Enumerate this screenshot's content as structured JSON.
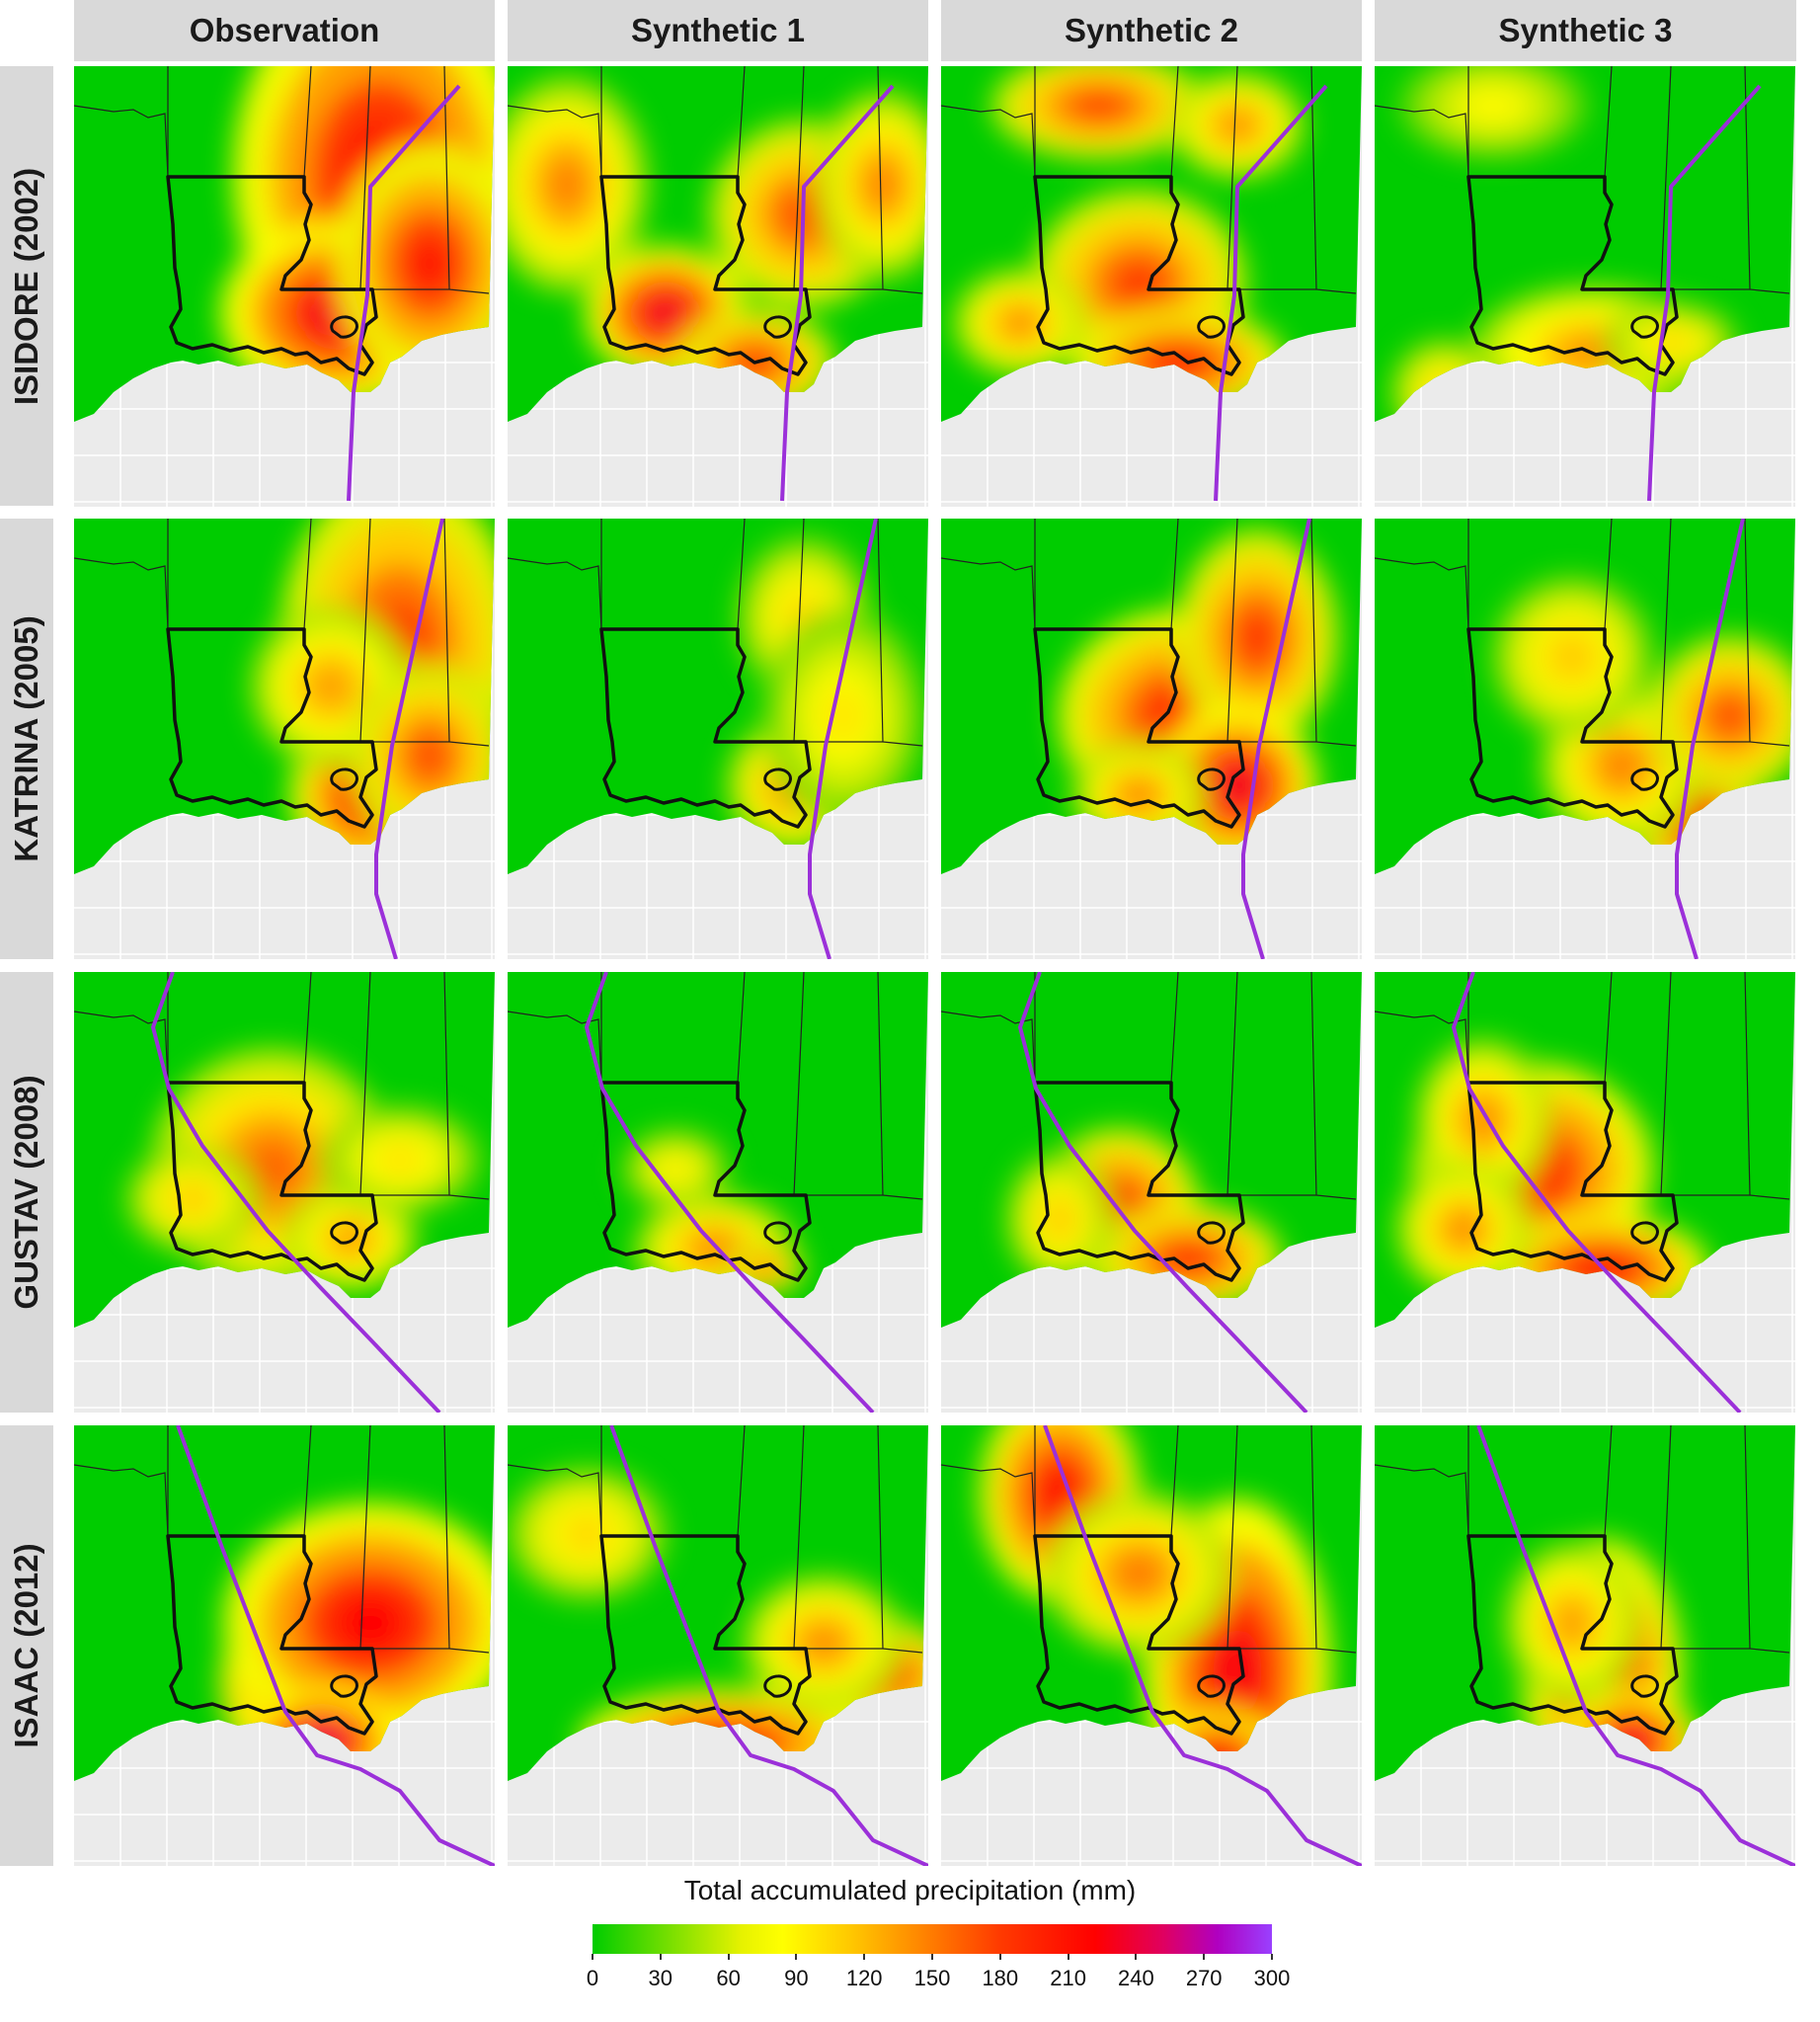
{
  "columns": [
    "Observation",
    "Synthetic 1",
    "Synthetic 2",
    "Synthetic 3"
  ],
  "rows": [
    "ISIDORE (2002)",
    "KATRINA (2005)",
    "GUSTAV (2008)",
    "ISAAC (2012)"
  ],
  "legend": {
    "title": "Total accumulated precipitation (mm)",
    "ticks": [
      "0",
      "30",
      "60",
      "90",
      "120",
      "150",
      "180",
      "210",
      "240",
      "270",
      "300"
    ],
    "min": 0,
    "max": 300
  },
  "colors": {
    "land_low": "#00cc00",
    "sea": "#ebebeb",
    "track": "#9b30d9",
    "state_border": "#111111",
    "header_bg": "#d9d9d9"
  },
  "chart_data": {
    "type": "heatmap",
    "variable": "Total accumulated precipitation (mm)",
    "range": [
      0,
      300
    ],
    "panels": [
      {
        "storm": "ISIDORE (2002)",
        "source": "Observation",
        "level": 0.65
      },
      {
        "storm": "ISIDORE (2002)",
        "source": "Synthetic 1",
        "level": 0.55
      },
      {
        "storm": "ISIDORE (2002)",
        "source": "Synthetic 2",
        "level": 0.5
      },
      {
        "storm": "ISIDORE (2002)",
        "source": "Synthetic 3",
        "level": 0.3
      },
      {
        "storm": "KATRINA (2005)",
        "source": "Observation",
        "level": 0.55
      },
      {
        "storm": "KATRINA (2005)",
        "source": "Synthetic 1",
        "level": 0.3
      },
      {
        "storm": "KATRINA (2005)",
        "source": "Synthetic 2",
        "level": 0.55
      },
      {
        "storm": "KATRINA (2005)",
        "source": "Synthetic 3",
        "level": 0.4
      },
      {
        "storm": "GUSTAV (2008)",
        "source": "Observation",
        "level": 0.4
      },
      {
        "storm": "GUSTAV (2008)",
        "source": "Synthetic 1",
        "level": 0.25
      },
      {
        "storm": "GUSTAV (2008)",
        "source": "Synthetic 2",
        "level": 0.4
      },
      {
        "storm": "GUSTAV (2008)",
        "source": "Synthetic 3",
        "level": 0.5
      },
      {
        "storm": "ISAAC (2012)",
        "source": "Observation",
        "level": 0.8
      },
      {
        "storm": "ISAAC (2012)",
        "source": "Synthetic 1",
        "level": 0.5
      },
      {
        "storm": "ISAAC (2012)",
        "source": "Synthetic 2",
        "level": 0.6
      },
      {
        "storm": "ISAAC (2012)",
        "source": "Synthetic 3",
        "level": 0.55
      }
    ]
  }
}
